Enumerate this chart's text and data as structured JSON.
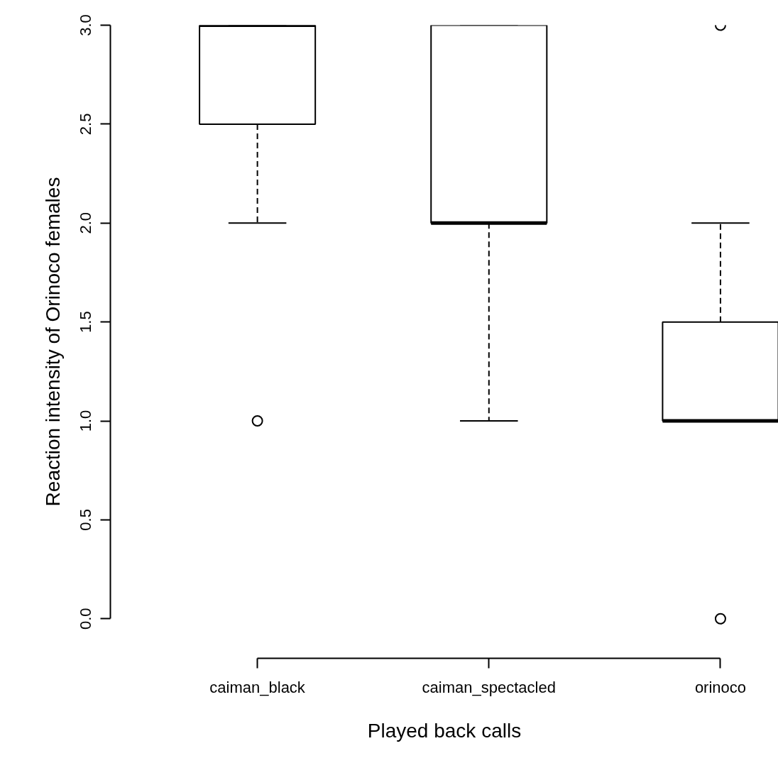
{
  "chart_data": {
    "type": "box",
    "xlabel": "Played back calls",
    "ylabel": "Reaction intensity of Orinoco females",
    "categories": [
      "caiman_black",
      "caiman_spectacled",
      "orinoco"
    ],
    "boxes": [
      {
        "low": 2,
        "q1": 2.5,
        "median": 3,
        "q3": 3,
        "high": 3,
        "outliers": [
          1
        ]
      },
      {
        "low": 1,
        "q1": 2,
        "median": 2,
        "q3": 3,
        "high": 3
      },
      {
        "low": 1,
        "q1": 1,
        "median": 1,
        "q3": 1.5,
        "high": 2,
        "outliers": [
          3,
          0
        ]
      }
    ],
    "ylim": [
      -0.2,
      3
    ],
    "yticks": [
      {
        "value": 0,
        "label": "0.0"
      },
      0.5,
      {
        "value": 1,
        "label": "1.0"
      },
      1.5,
      {
        "value": 2,
        "label": "2.0"
      },
      2.5,
      {
        "value": 3,
        "label": "3.0"
      }
    ],
    "grid": false
  }
}
